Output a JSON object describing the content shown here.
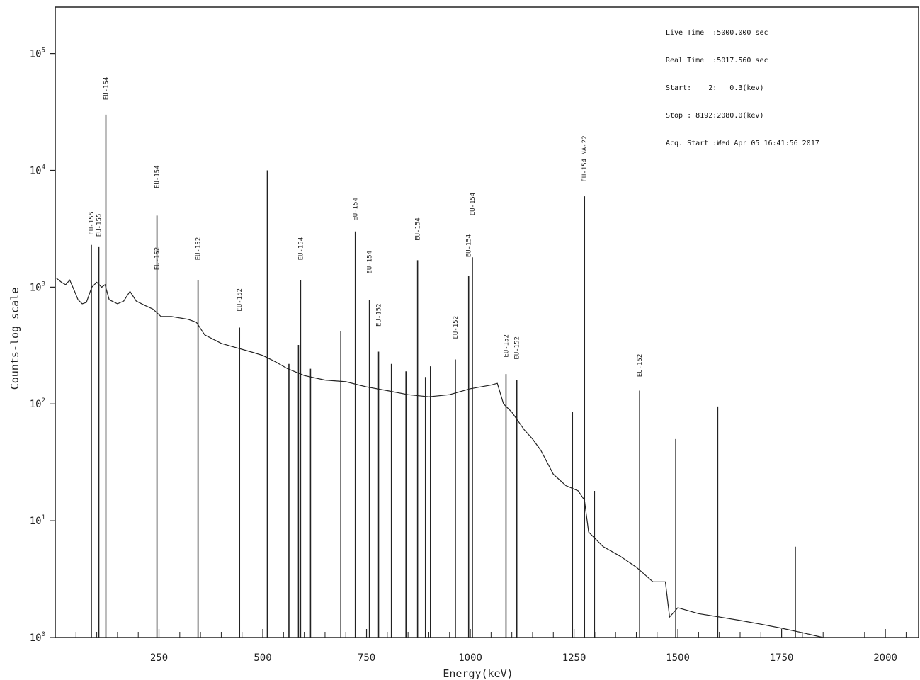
{
  "info_box": [
    "Live Time  :5000.000 sec",
    "Real Time  :5017.560 sec",
    "Start:    2:   0.3(kev)",
    "Stop : 8192:2080.0(kev)",
    "Acq. Start :Wed Apr 05 16:41:56 2017"
  ],
  "chart_data": {
    "type": "line",
    "title": "",
    "xlabel": "Energy(keV)",
    "ylabel": "Counts-log scale",
    "xlim": [
      0,
      2080
    ],
    "ylim": [
      1,
      250000
    ],
    "yscale": "log",
    "xticks": [
      250,
      500,
      750,
      1000,
      1250,
      1500,
      1750,
      2000
    ],
    "yticks": [
      {
        "value": 1,
        "mantissa": "10",
        "exp": "0"
      },
      {
        "value": 10,
        "mantissa": "10",
        "exp": "1"
      },
      {
        "value": 100,
        "mantissa": "10",
        "exp": "2"
      },
      {
        "value": 1000,
        "mantissa": "10",
        "exp": "3"
      },
      {
        "value": 10000,
        "mantissa": "10",
        "exp": "4"
      },
      {
        "value": 100000,
        "mantissa": "10",
        "exp": "5"
      }
    ],
    "grid": false,
    "continuum": [
      [
        2,
        1200
      ],
      [
        15,
        1100
      ],
      [
        25,
        1050
      ],
      [
        35,
        1150
      ],
      [
        45,
        950
      ],
      [
        55,
        780
      ],
      [
        65,
        720
      ],
      [
        75,
        740
      ],
      [
        88,
        1000
      ],
      [
        100,
        1100
      ],
      [
        112,
        1000
      ],
      [
        120,
        1050
      ],
      [
        130,
        780
      ],
      [
        150,
        720
      ],
      [
        165,
        760
      ],
      [
        180,
        920
      ],
      [
        195,
        760
      ],
      [
        215,
        700
      ],
      [
        235,
        650
      ],
      [
        255,
        560
      ],
      [
        280,
        560
      ],
      [
        320,
        530
      ],
      [
        340,
        500
      ],
      [
        360,
        390
      ],
      [
        400,
        330
      ],
      [
        440,
        300
      ],
      [
        470,
        280
      ],
      [
        500,
        260
      ],
      [
        530,
        230
      ],
      [
        560,
        200
      ],
      [
        600,
        175
      ],
      [
        650,
        160
      ],
      [
        700,
        155
      ],
      [
        750,
        140
      ],
      [
        800,
        130
      ],
      [
        850,
        120
      ],
      [
        900,
        115
      ],
      [
        950,
        120
      ],
      [
        1000,
        135
      ],
      [
        1050,
        145
      ],
      [
        1065,
        150
      ],
      [
        1080,
        100
      ],
      [
        1100,
        85
      ],
      [
        1130,
        60
      ],
      [
        1150,
        50
      ],
      [
        1170,
        40
      ],
      [
        1200,
        25
      ],
      [
        1230,
        20
      ],
      [
        1260,
        18
      ],
      [
        1275,
        15
      ],
      [
        1285,
        8
      ],
      [
        1320,
        6
      ],
      [
        1360,
        5
      ],
      [
        1400,
        4
      ],
      [
        1440,
        3
      ],
      [
        1470,
        3
      ],
      [
        1480,
        1.5
      ],
      [
        1500,
        1.8
      ],
      [
        1550,
        1.6
      ],
      [
        1600,
        1.5
      ],
      [
        1650,
        1.4
      ],
      [
        1700,
        1.3
      ],
      [
        1750,
        1.2
      ],
      [
        1800,
        1.1
      ],
      [
        1850,
        1.0
      ]
    ],
    "peaks": [
      {
        "x": 87,
        "y": 2300
      },
      {
        "x": 105,
        "y": 2200
      },
      {
        "x": 122,
        "y": 30000
      },
      {
        "x": 245,
        "y": 4100
      },
      {
        "x": 344,
        "y": 1150
      },
      {
        "x": 444,
        "y": 450
      },
      {
        "x": 511,
        "y": 10000
      },
      {
        "x": 563,
        "y": 220
      },
      {
        "x": 586,
        "y": 320
      },
      {
        "x": 591,
        "y": 1150
      },
      {
        "x": 615,
        "y": 200
      },
      {
        "x": 688,
        "y": 420
      },
      {
        "x": 723,
        "y": 3000
      },
      {
        "x": 757,
        "y": 780
      },
      {
        "x": 779,
        "y": 280
      },
      {
        "x": 810,
        "y": 220
      },
      {
        "x": 845,
        "y": 190
      },
      {
        "x": 873,
        "y": 1700
      },
      {
        "x": 892,
        "y": 170
      },
      {
        "x": 904,
        "y": 210
      },
      {
        "x": 964,
        "y": 240
      },
      {
        "x": 996,
        "y": 1250
      },
      {
        "x": 1005,
        "y": 1800
      },
      {
        "x": 1086,
        "y": 180
      },
      {
        "x": 1112,
        "y": 160
      },
      {
        "x": 1246,
        "y": 85
      },
      {
        "x": 1275,
        "y": 6000
      },
      {
        "x": 1299,
        "y": 18
      },
      {
        "x": 1408,
        "y": 130
      },
      {
        "x": 1495,
        "y": 50
      },
      {
        "x": 1596,
        "y": 95
      },
      {
        "x": 1783,
        "y": 6
      }
    ],
    "peak_labels": [
      {
        "x": 87,
        "y": 2800,
        "text": "EU-155"
      },
      {
        "x": 105,
        "y": 2700,
        "text": "EU-155"
      },
      {
        "x": 122,
        "y": 40000,
        "text": "EU-154"
      },
      {
        "x": 245,
        "y": 7000,
        "text": "EU-154"
      },
      {
        "x": 245,
        "y": 1400,
        "text": "EU-152"
      },
      {
        "x": 344,
        "y": 1700,
        "text": "EU-152"
      },
      {
        "x": 444,
        "y": 620,
        "text": "EU-152"
      },
      {
        "x": 591,
        "y": 1700,
        "text": "EU-154"
      },
      {
        "x": 723,
        "y": 3700,
        "text": "EU-154"
      },
      {
        "x": 757,
        "y": 1300,
        "text": "EU-154"
      },
      {
        "x": 779,
        "y": 460,
        "text": "EU-152"
      },
      {
        "x": 873,
        "y": 2500,
        "text": "EU-154"
      },
      {
        "x": 964,
        "y": 360,
        "text": "EU-152"
      },
      {
        "x": 996,
        "y": 1800,
        "text": "EU-154"
      },
      {
        "x": 1005,
        "y": 4100,
        "text": "EU-154"
      },
      {
        "x": 1086,
        "y": 250,
        "text": "EU-152"
      },
      {
        "x": 1112,
        "y": 240,
        "text": "EU-152"
      },
      {
        "x": 1275,
        "y": 8000,
        "text": "EU-154 NA-22"
      },
      {
        "x": 1408,
        "y": 170,
        "text": "EU-152"
      }
    ]
  }
}
